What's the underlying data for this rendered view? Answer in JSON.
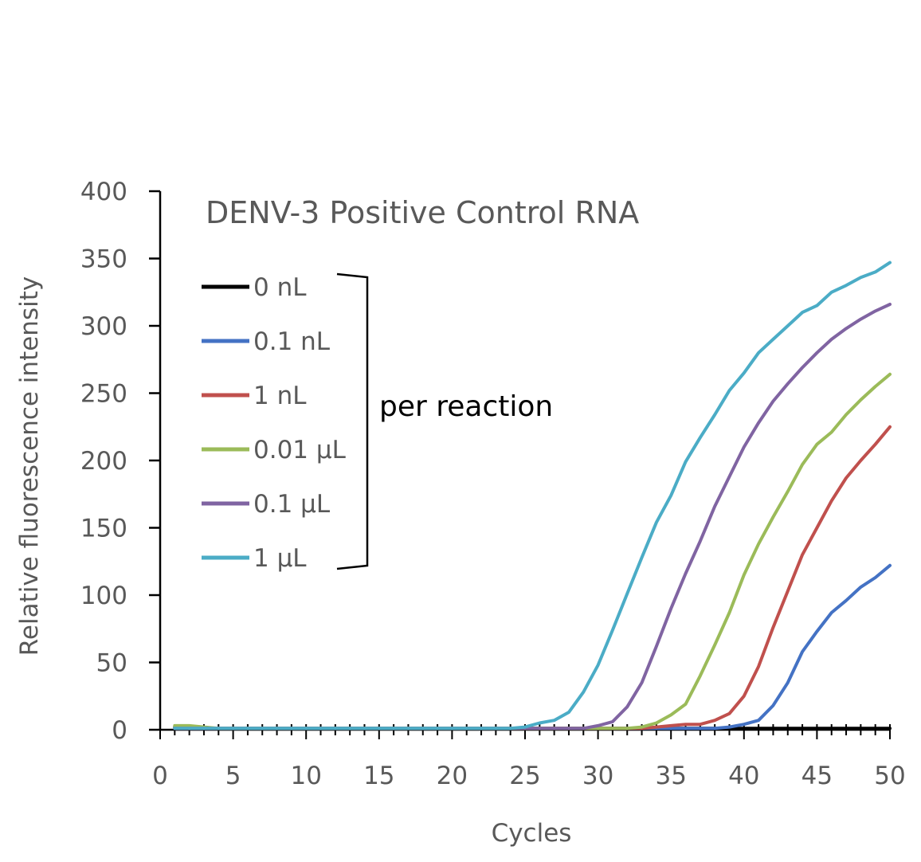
{
  "chart_data": {
    "type": "line",
    "title": "DENV-3 Positive Control RNA",
    "xlabel": "Cycles",
    "ylabel": "Relative fluorescence intensity",
    "xlim": [
      0,
      50
    ],
    "ylim": [
      0,
      400
    ],
    "xticks": [
      0,
      5,
      10,
      15,
      20,
      25,
      30,
      35,
      40,
      45,
      50
    ],
    "yticks": [
      0,
      50,
      100,
      150,
      200,
      250,
      300,
      350,
      400
    ],
    "grid": false,
    "legend_position": "top-left",
    "annotation": "per reaction",
    "x": [
      1,
      2,
      3,
      4,
      5,
      6,
      7,
      8,
      9,
      10,
      11,
      12,
      13,
      14,
      15,
      16,
      17,
      18,
      19,
      20,
      21,
      22,
      23,
      24,
      25,
      26,
      27,
      28,
      29,
      30,
      31,
      32,
      33,
      34,
      35,
      36,
      37,
      38,
      39,
      40,
      41,
      42,
      43,
      44,
      45,
      46,
      47,
      48,
      49,
      50
    ],
    "series": [
      {
        "name": "0 nL",
        "color": "#000000",
        "values": [
          2,
          2,
          1,
          1,
          1,
          1,
          1,
          1,
          1,
          1,
          1,
          1,
          1,
          1,
          1,
          1,
          1,
          1,
          1,
          1,
          1,
          1,
          1,
          1,
          1,
          1,
          1,
          1,
          1,
          1,
          1,
          1,
          1,
          1,
          1,
          1,
          1,
          1,
          1,
          1,
          1,
          1,
          1,
          1,
          1,
          1,
          1,
          1,
          1,
          1
        ]
      },
      {
        "name": "0.1 nL",
        "color": "#4472C4",
        "values": [
          1,
          1,
          1,
          1,
          1,
          1,
          1,
          1,
          1,
          1,
          1,
          1,
          1,
          1,
          1,
          1,
          1,
          1,
          1,
          1,
          1,
          1,
          1,
          1,
          1,
          1,
          1,
          1,
          1,
          1,
          1,
          1,
          1,
          1,
          1,
          1,
          1,
          1,
          2,
          4,
          7,
          18,
          35,
          58,
          73,
          87,
          96,
          106,
          113,
          122
        ]
      },
      {
        "name": "1 nL",
        "color": "#C0504D",
        "values": [
          1,
          1,
          1,
          1,
          1,
          1,
          1,
          1,
          1,
          1,
          1,
          1,
          1,
          1,
          1,
          1,
          1,
          1,
          1,
          1,
          1,
          1,
          1,
          1,
          1,
          1,
          1,
          1,
          1,
          1,
          1,
          1,
          1,
          2,
          3,
          4,
          4,
          7,
          12,
          25,
          47,
          76,
          103,
          130,
          150,
          170,
          187,
          200,
          212,
          225
        ]
      },
      {
        "name": "0.01 μL",
        "color": "#9BBB59",
        "values": [
          3,
          3,
          2,
          1,
          1,
          1,
          1,
          1,
          1,
          1,
          1,
          1,
          1,
          1,
          1,
          1,
          1,
          1,
          1,
          1,
          1,
          1,
          1,
          1,
          1,
          1,
          1,
          1,
          1,
          1,
          1,
          1,
          2,
          5,
          11,
          19,
          40,
          63,
          87,
          115,
          138,
          158,
          177,
          197,
          212,
          221,
          234,
          245,
          255,
          264
        ]
      },
      {
        "name": "0.1 μL",
        "color": "#8064A2",
        "values": [
          1,
          1,
          1,
          1,
          1,
          1,
          1,
          1,
          1,
          1,
          1,
          1,
          1,
          1,
          1,
          1,
          1,
          1,
          1,
          1,
          1,
          1,
          1,
          1,
          1,
          1,
          1,
          1,
          1,
          3,
          6,
          17,
          35,
          62,
          90,
          116,
          140,
          166,
          188,
          210,
          228,
          244,
          257,
          269,
          280,
          290,
          298,
          305,
          311,
          316
        ]
      },
      {
        "name": "1 μL",
        "color": "#4BACC6",
        "values": [
          1,
          1,
          1,
          1,
          1,
          1,
          1,
          1,
          1,
          1,
          1,
          1,
          1,
          1,
          1,
          1,
          1,
          1,
          1,
          1,
          1,
          1,
          1,
          1,
          2,
          5,
          7,
          13,
          28,
          48,
          74,
          101,
          128,
          154,
          174,
          199,
          217,
          234,
          252,
          265,
          280,
          290,
          300,
          310,
          315,
          325,
          330,
          336,
          340,
          347
        ]
      }
    ]
  }
}
